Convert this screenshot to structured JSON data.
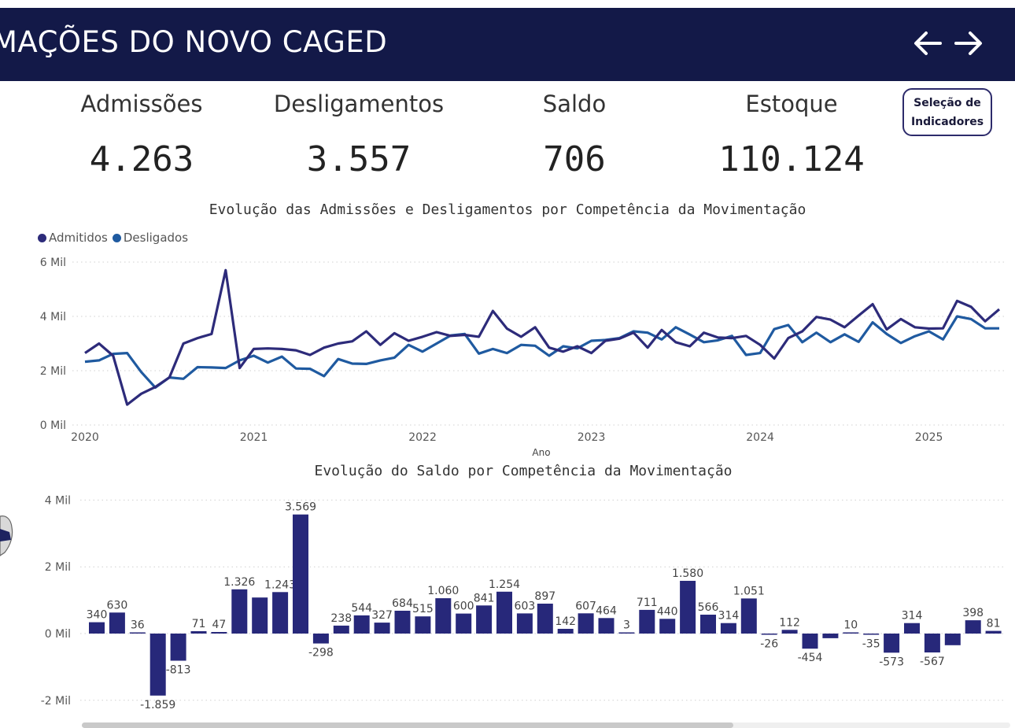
{
  "header": {
    "title": "MAÇÕES DO NOVO CAGED",
    "back_icon": "arrow-left-icon",
    "forward_icon": "arrow-right-icon"
  },
  "kpis": {
    "admissoes": {
      "label": "Admissões",
      "value": "4.263"
    },
    "desligamentos": {
      "label": "Desligamentos",
      "value": "3.557"
    },
    "saldo": {
      "label": "Saldo",
      "value": "706"
    },
    "estoque": {
      "label": "Estoque",
      "value": "110.124"
    }
  },
  "selection_button": {
    "label": "Seleção de\nIndicadores"
  },
  "colors": {
    "header_bg": "#131948",
    "admitidos": "#2d2b7a",
    "desligados": "#1f5aa0",
    "saldo_bar": "#27287a"
  },
  "chart_data": [
    {
      "type": "line",
      "title": "Evolução das Admissões e Desligamentos por Competência da Movimentação",
      "xlabel": "Ano",
      "ylabel": "",
      "x_tick_labels": [
        "2020",
        "2021",
        "2022",
        "2023",
        "2024",
        "2025"
      ],
      "y_tick_labels": [
        "0 Mil",
        "2 Mil",
        "4 Mil",
        "6 Mil"
      ],
      "y_ticks": [
        0,
        2000,
        4000,
        6000
      ],
      "ylim": [
        0,
        6000
      ],
      "x_start": "2020-01",
      "grid": true,
      "legend_position": "top-left",
      "series": [
        {
          "name": "Admitidos",
          "values": [
            2650,
            3000,
            2550,
            750,
            1150,
            1400,
            1750,
            3000,
            3200,
            3350,
            5700,
            2100,
            2800,
            2820,
            2800,
            2750,
            2580,
            2850,
            3000,
            3080,
            3450,
            2950,
            3380,
            3100,
            3250,
            3420,
            3280,
            3320,
            3250,
            4200,
            3550,
            3250,
            3600,
            2850,
            2700,
            2900,
            2650,
            3100,
            3180,
            3400,
            2850,
            3500,
            3050,
            2900,
            3400,
            3220,
            3200,
            3280,
            2950,
            2450,
            3200,
            3450,
            3980,
            3880,
            3600,
            4030,
            4450,
            3520,
            3900,
            3600,
            3550,
            3560,
            4570,
            4350,
            3820,
            4260
          ]
        },
        {
          "name": "Desligados",
          "values": [
            2330,
            2380,
            2620,
            2650,
            1950,
            1380,
            1750,
            1700,
            2130,
            2120,
            2100,
            2380,
            2550,
            2300,
            2520,
            2080,
            2070,
            1800,
            2430,
            2260,
            2250,
            2380,
            2480,
            2950,
            2700,
            3000,
            3300,
            3350,
            2630,
            2800,
            2650,
            2950,
            2920,
            2550,
            2900,
            2820,
            3100,
            3130,
            3200,
            3450,
            3400,
            3150,
            3600,
            3330,
            3050,
            3120,
            3280,
            2580,
            2650,
            3530,
            3680,
            3050,
            3400,
            3050,
            3340,
            3060,
            3780,
            3350,
            3020,
            3270,
            3450,
            3150,
            4000,
            3900,
            3560,
            3560
          ]
        }
      ]
    },
    {
      "type": "bar",
      "title": "Evolução do Saldo por Competência da Movimentação",
      "xlabel": "",
      "ylabel": "",
      "y_tick_labels": [
        "-2 Mil",
        "0 Mil",
        "2 Mil",
        "4 Mil"
      ],
      "y_ticks": [
        -2000,
        0,
        2000,
        4000
      ],
      "ylim": [
        -2000,
        4000
      ],
      "grid": true,
      "values": [
        340,
        630,
        36,
        -1859,
        -813,
        71,
        47,
        1326,
        1080,
        1243,
        3569,
        -298,
        238,
        544,
        327,
        684,
        515,
        1060,
        600,
        841,
        1254,
        603,
        897,
        142,
        607,
        464,
        3,
        711,
        440,
        1580,
        566,
        314,
        1051,
        -26,
        112,
        -454,
        -140,
        10,
        -35,
        -573,
        314,
        -567,
        -350,
        398,
        81
      ],
      "data_labels": [
        "340",
        "630",
        "36",
        "-1.859",
        "-813",
        "71",
        "47",
        "1.326",
        "",
        "1.243",
        "3.569",
        "-298",
        "238",
        "544",
        "327",
        "684",
        "515",
        "1.060",
        "600",
        "841",
        "1.254",
        "603",
        "897",
        "142",
        "607",
        "464",
        "3",
        "711",
        "440",
        "1.580",
        "566",
        "314",
        "1.051",
        "-26",
        "112",
        "-454",
        "",
        "10",
        "-35",
        "-573",
        "314",
        "-567",
        "",
        "398",
        "81"
      ]
    }
  ]
}
